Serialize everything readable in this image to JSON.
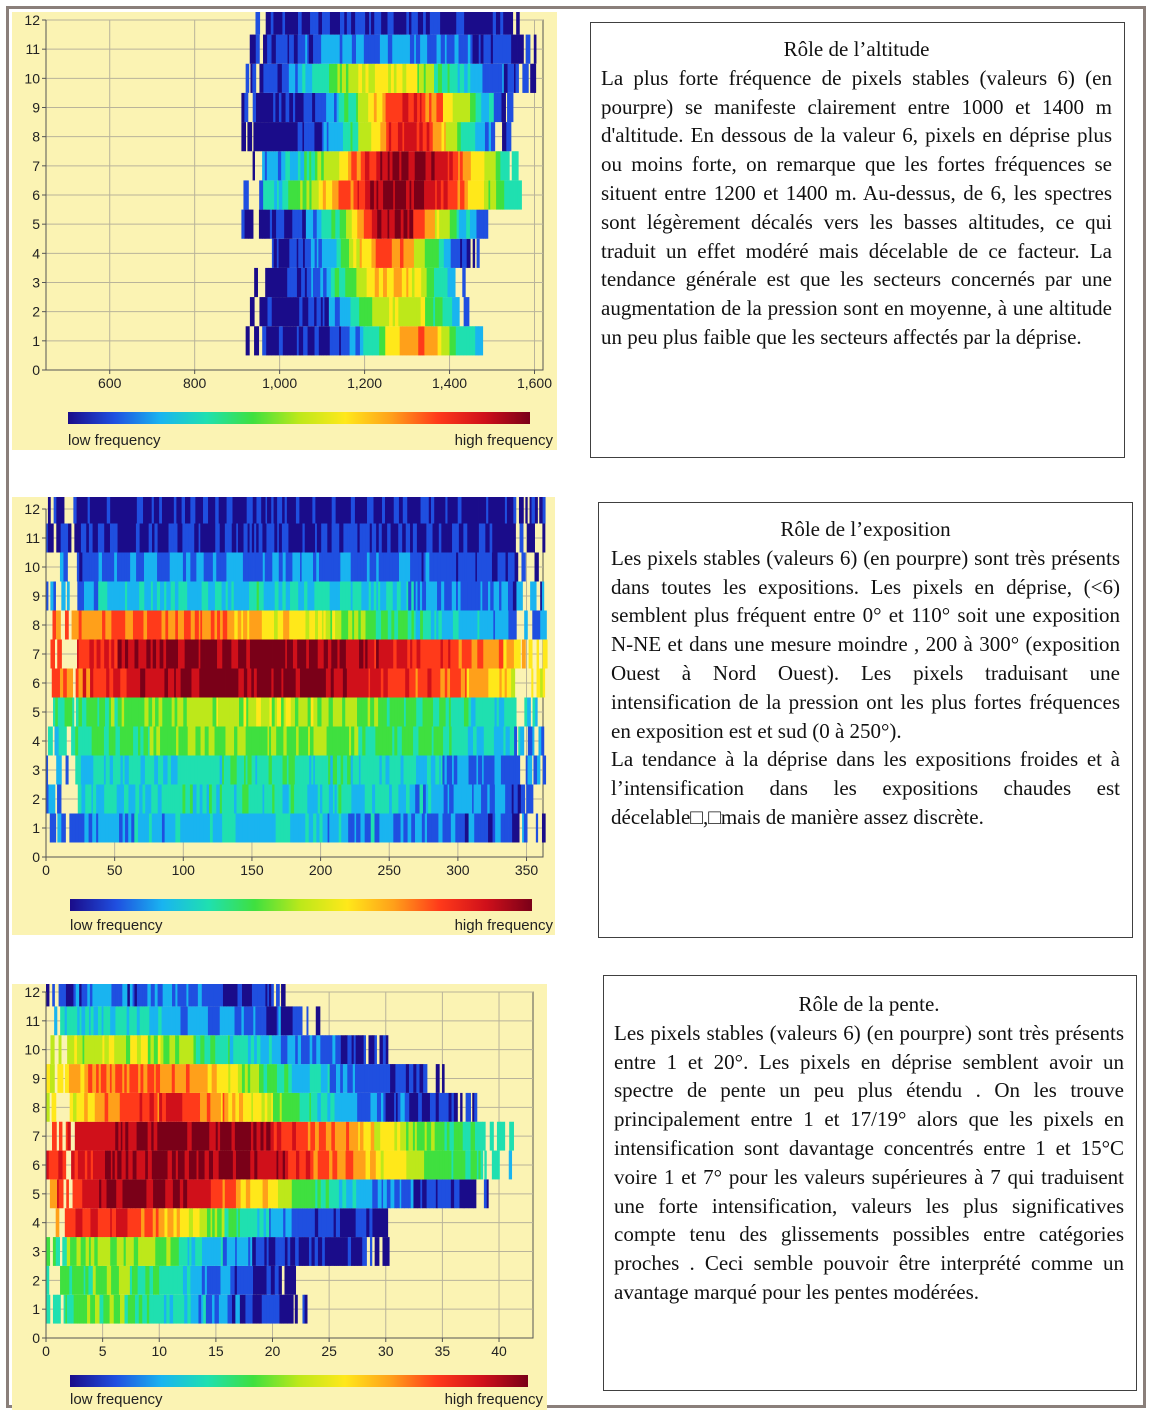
{
  "colors": {
    "plot_background": "#fbf3b3",
    "grid": "#b9b39a",
    "axis": "#555555",
    "border": "#8a7f7a",
    "colormap": [
      "#1a0c8a",
      "#1f4fe0",
      "#19b4f0",
      "#1fe0b0",
      "#3fe03f",
      "#bde81a",
      "#ffe81a",
      "#ffa01a",
      "#ff3a1a",
      "#d0101a",
      "#7a0018"
    ]
  },
  "legend": {
    "low": "low frequency",
    "high": "high frequency"
  },
  "chart_data": [
    {
      "type": "heatmap",
      "xlim": [
        450,
        1620
      ],
      "ylim": [
        0,
        12
      ],
      "x_ticks": [
        600,
        800,
        1000,
        1200,
        1400,
        1600
      ],
      "x_tick_labels": [
        "600",
        "800",
        "1,000",
        "1,200",
        "1,400",
        "1,600"
      ],
      "y_ticks": [
        0,
        1,
        2,
        3,
        4,
        5,
        6,
        7,
        8,
        9,
        10,
        11,
        12
      ],
      "grid": true,
      "rows": [
        {
          "value": 1,
          "range": [
            920,
            1470
          ],
          "peak": 1320,
          "width": 120,
          "level": 0.72
        },
        {
          "value": 2,
          "range": [
            930,
            1440
          ],
          "peak": 1280,
          "width": 130,
          "level": 0.6
        },
        {
          "value": 3,
          "range": [
            940,
            1440
          ],
          "peak": 1260,
          "width": 140,
          "level": 0.66
        },
        {
          "value": 4,
          "range": [
            950,
            1470
          ],
          "peak": 1250,
          "width": 120,
          "level": 0.78
        },
        {
          "value": 5,
          "range": [
            910,
            1520
          ],
          "peak": 1270,
          "width": 140,
          "level": 0.97
        },
        {
          "value": 6,
          "range": [
            910,
            1560
          ],
          "peak": 1280,
          "width": 250,
          "level": 1.0
        },
        {
          "value": 7,
          "range": [
            920,
            1560
          ],
          "peak": 1300,
          "width": 230,
          "level": 1.0
        },
        {
          "value": 8,
          "range": [
            910,
            1540
          ],
          "peak": 1300,
          "width": 140,
          "level": 0.88
        },
        {
          "value": 9,
          "range": [
            910,
            1550
          ],
          "peak": 1310,
          "width": 150,
          "level": 0.86
        },
        {
          "value": 10,
          "range": [
            920,
            1600
          ],
          "peak": 1250,
          "width": 200,
          "level": 0.58
        },
        {
          "value": 11,
          "range": [
            920,
            1600
          ],
          "peak": 1250,
          "width": 260,
          "level": 0.18
        },
        {
          "value": 12,
          "range": [
            930,
            1560
          ],
          "peak": 1250,
          "width": 260,
          "level": 0.05
        }
      ]
    },
    {
      "type": "heatmap",
      "xlim": [
        0,
        362
      ],
      "ylim": [
        0,
        12
      ],
      "x_ticks": [
        0,
        50,
        100,
        150,
        200,
        250,
        300,
        350
      ],
      "x_tick_labels": [
        "0",
        "50",
        "100",
        "150",
        "200",
        "250",
        "300",
        "350"
      ],
      "y_ticks": [
        0,
        1,
        2,
        3,
        4,
        5,
        6,
        7,
        8,
        9,
        10,
        11,
        12
      ],
      "grid": true,
      "rows": [
        {
          "value": 1,
          "range": [
            0,
            362
          ],
          "peak": 150,
          "width": 200,
          "level": 0.22
        },
        {
          "value": 2,
          "range": [
            0,
            362
          ],
          "peak": 150,
          "width": 200,
          "level": 0.3
        },
        {
          "value": 3,
          "range": [
            0,
            362
          ],
          "peak": 150,
          "width": 200,
          "level": 0.32
        },
        {
          "value": 4,
          "range": [
            0,
            362
          ],
          "peak": 150,
          "width": 220,
          "level": 0.45
        },
        {
          "value": 5,
          "range": [
            0,
            362
          ],
          "peak": 150,
          "width": 220,
          "level": 0.5
        },
        {
          "value": 6,
          "range": [
            0,
            362
          ],
          "peak": 150,
          "width": 260,
          "level": 1.0
        },
        {
          "value": 7,
          "range": [
            0,
            362
          ],
          "peak": 150,
          "width": 300,
          "level": 1.0
        },
        {
          "value": 8,
          "range": [
            0,
            362
          ],
          "peak": 60,
          "width": 220,
          "level": 0.78
        },
        {
          "value": 9,
          "range": [
            0,
            362
          ],
          "peak": 150,
          "width": 200,
          "level": 0.28
        },
        {
          "value": 10,
          "range": [
            0,
            362
          ],
          "peak": 150,
          "width": 200,
          "level": 0.16
        },
        {
          "value": 11,
          "range": [
            0,
            362
          ],
          "peak": 150,
          "width": 200,
          "level": 0.05
        },
        {
          "value": 12,
          "range": [
            0,
            362
          ],
          "peak": 150,
          "width": 200,
          "level": 0.02
        }
      ]
    },
    {
      "type": "heatmap",
      "xlim": [
        0,
        43
      ],
      "ylim": [
        0,
        12
      ],
      "x_ticks": [
        0,
        5,
        10,
        15,
        20,
        25,
        30,
        35,
        40
      ],
      "x_tick_labels": [
        "0",
        "5",
        "10",
        "15",
        "20",
        "25",
        "30",
        "35",
        "40"
      ],
      "y_ticks": [
        0,
        1,
        2,
        3,
        4,
        5,
        6,
        7,
        8,
        9,
        10,
        11,
        12
      ],
      "grid": true,
      "rows": [
        {
          "value": 1,
          "range": [
            0,
            23
          ],
          "peak": 6,
          "width": 9,
          "level": 0.4
        },
        {
          "value": 2,
          "range": [
            0,
            22
          ],
          "peak": 6,
          "width": 9,
          "level": 0.42
        },
        {
          "value": 3,
          "range": [
            0,
            30
          ],
          "peak": 6,
          "width": 10,
          "level": 0.5
        },
        {
          "value": 4,
          "range": [
            0,
            31
          ],
          "peak": 5,
          "width": 12,
          "level": 0.86
        },
        {
          "value": 5,
          "range": [
            0,
            39
          ],
          "peak": 8,
          "width": 16,
          "level": 0.98
        },
        {
          "value": 6,
          "range": [
            0,
            41
          ],
          "peak": 12,
          "width": 25,
          "level": 1.0
        },
        {
          "value": 7,
          "range": [
            0,
            41
          ],
          "peak": 12,
          "width": 24,
          "level": 1.0
        },
        {
          "value": 8,
          "range": [
            0,
            38
          ],
          "peak": 10,
          "width": 14,
          "level": 0.82
        },
        {
          "value": 9,
          "range": [
            0,
            35
          ],
          "peak": 8,
          "width": 14,
          "level": 0.78
        },
        {
          "value": 10,
          "range": [
            0,
            30
          ],
          "peak": 6,
          "width": 14,
          "level": 0.52
        },
        {
          "value": 11,
          "range": [
            0,
            24
          ],
          "peak": 6,
          "width": 14,
          "level": 0.25
        },
        {
          "value": 12,
          "range": [
            0,
            21
          ],
          "peak": 6,
          "width": 14,
          "level": 0.12
        }
      ]
    }
  ],
  "panels": [
    {
      "title": "Rôle de l’altitude",
      "body": "La plus forte fréquence de pixels stables (valeurs  6) (en pourpre) se manifeste clairement entre 1000 et 1400 m d'altitude. En dessous de la valeur 6, pixels en déprise plus ou moins forte,  on remarque  que les fortes fréquences se situent entre 1200 et 1400 m. Au-dessus, de 6, les spectres sont légèrement décalés vers les basses altitudes, ce qui traduit un effet modéré mais décelable de ce facteur. La tendance générale est que les secteurs concernés par une augmentation de la pression sont en moyenne, à une altitude un peu plus faible que les secteurs affectés par la déprise."
    },
    {
      "title": "Rôle de l’exposition",
      "body": "Les pixels stables (valeurs 6) (en pourpre) sont très présents dans toutes les expositions. Les pixels en déprise, (<6) semblent plus fréquent entre 0° et 110° soit une exposition N-NE et dans une mesure moindre , 200 à 300° (exposition Ouest à Nord Ouest). Les pixels traduisant une intensification de la pression ont les plus fortes fréquences en exposition est et sud (0 à 250°).",
      "body2": "La tendance à la déprise dans les expositions froides et à l’intensification dans les expositions chaudes est décelable□,□mais de manière assez discrète."
    },
    {
      "title": "Rôle de la pente.",
      "body": "Les pixels stables (valeurs 6) (en pourpre) sont très présents entre 1 et 20°. Les pixels en déprise semblent avoir un spectre de pente un peu plus étendu . On les trouve principalement entre 1 et 17/19° alors que les pixels en intensification sont davantage concentrés entre 1 et 15°C voire 1 et 7° pour les valeurs supérieures à 7 qui traduisent une forte intensification, valeurs les plus significatives compte tenu des glissements possibles entre catégories proches . Ceci semble pouvoir être interprété comme un avantage marqué pour les pentes modérées."
    }
  ]
}
